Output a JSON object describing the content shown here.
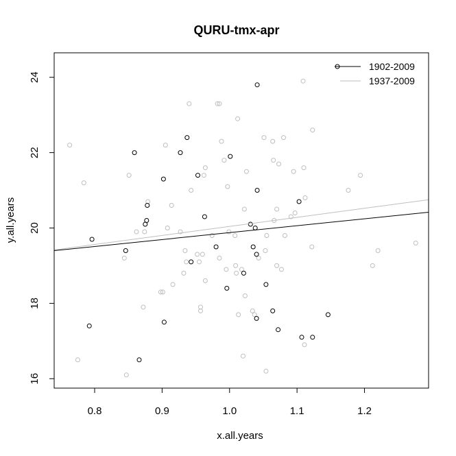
{
  "chart_data": {
    "type": "scatter",
    "title": "QURU-tmx-apr",
    "xlabel": "x.all.years",
    "ylabel": "y.all.years",
    "xlim": [
      0.74,
      1.295
    ],
    "ylim": [
      15.75,
      24.65
    ],
    "x_ticks": [
      0.8,
      0.9,
      1.0,
      1.1,
      1.2
    ],
    "y_ticks": [
      16,
      18,
      20,
      22,
      24
    ],
    "legend_position": "top-right",
    "series": [
      {
        "name": "1902-2009",
        "color": "#000000",
        "marker": "open-circle",
        "regression": {
          "intercept": 18.04,
          "slope": 1.837
        },
        "points": [
          [
            0.796,
            19.7
          ],
          [
            0.792,
            17.4
          ],
          [
            0.846,
            19.4
          ],
          [
            0.859,
            22.0
          ],
          [
            0.866,
            16.5
          ],
          [
            0.875,
            20.1
          ],
          [
            0.877,
            20.2
          ],
          [
            0.878,
            20.6
          ],
          [
            0.902,
            21.3
          ],
          [
            0.903,
            17.5
          ],
          [
            0.927,
            22.0
          ],
          [
            0.937,
            22.4
          ],
          [
            0.943,
            19.1
          ],
          [
            0.953,
            21.4
          ],
          [
            0.963,
            20.3
          ],
          [
            0.98,
            19.5
          ],
          [
            0.996,
            18.4
          ],
          [
            1.001,
            21.9
          ],
          [
            1.021,
            18.8
          ],
          [
            1.031,
            20.1
          ],
          [
            1.035,
            19.5
          ],
          [
            1.038,
            20.0
          ],
          [
            1.04,
            19.3
          ],
          [
            1.04,
            17.6
          ],
          [
            1.041,
            23.8
          ],
          [
            1.041,
            21.0
          ],
          [
            1.054,
            18.5
          ],
          [
            1.064,
            17.8
          ],
          [
            1.072,
            17.3
          ],
          [
            1.103,
            20.7
          ],
          [
            1.107,
            17.1
          ],
          [
            1.123,
            17.1
          ],
          [
            1.146,
            17.7
          ]
        ]
      },
      {
        "name": "1937-2009",
        "color": "#bebebe",
        "marker": "open-circle",
        "regression": {
          "intercept": 17.64,
          "slope": 2.403
        },
        "points": [
          [
            0.763,
            22.2
          ],
          [
            0.775,
            16.5
          ],
          [
            0.784,
            21.2
          ],
          [
            0.844,
            19.2
          ],
          [
            0.847,
            16.1
          ],
          [
            0.851,
            21.4
          ],
          [
            0.862,
            19.9
          ],
          [
            0.872,
            17.9
          ],
          [
            0.874,
            19.9
          ],
          [
            0.879,
            20.7
          ],
          [
            0.898,
            18.3
          ],
          [
            0.901,
            18.3
          ],
          [
            0.905,
            22.2
          ],
          [
            0.908,
            20.0
          ],
          [
            0.914,
            20.6
          ],
          [
            0.916,
            18.5
          ],
          [
            0.927,
            19.9
          ],
          [
            0.932,
            18.8
          ],
          [
            0.934,
            19.4
          ],
          [
            0.936,
            19.1
          ],
          [
            0.94,
            23.3
          ],
          [
            0.943,
            21.0
          ],
          [
            0.952,
            19.3
          ],
          [
            0.955,
            19.1
          ],
          [
            0.957,
            17.9
          ],
          [
            0.957,
            17.8
          ],
          [
            0.96,
            19.3
          ],
          [
            0.962,
            21.4
          ],
          [
            0.964,
            21.6
          ],
          [
            0.964,
            18.6
          ],
          [
            0.974,
            19.8
          ],
          [
            0.982,
            23.3
          ],
          [
            0.985,
            23.3
          ],
          [
            0.985,
            19.2
          ],
          [
            0.988,
            22.3
          ],
          [
            0.992,
            21.8
          ],
          [
            0.995,
            18.9
          ],
          [
            0.997,
            21.1
          ],
          [
            0.999,
            19.9
          ],
          [
            1.008,
            19.8
          ],
          [
            1.009,
            19.0
          ],
          [
            1.01,
            18.8
          ],
          [
            1.012,
            22.9
          ],
          [
            1.013,
            17.7
          ],
          [
            1.018,
            18.9
          ],
          [
            1.02,
            16.6
          ],
          [
            1.022,
            20.5
          ],
          [
            1.023,
            18.2
          ],
          [
            1.025,
            21.5
          ],
          [
            1.034,
            17.8
          ],
          [
            1.035,
            19.5
          ],
          [
            1.037,
            17.7
          ],
          [
            1.043,
            19.2
          ],
          [
            1.051,
            22.4
          ],
          [
            1.053,
            19.4
          ],
          [
            1.054,
            16.2
          ],
          [
            1.055,
            19.8
          ],
          [
            1.064,
            22.3
          ],
          [
            1.065,
            21.8
          ],
          [
            1.066,
            20.2
          ],
          [
            1.07,
            20.5
          ],
          [
            1.07,
            19.0
          ],
          [
            1.073,
            21.7
          ],
          [
            1.077,
            18.9
          ],
          [
            1.08,
            22.4
          ],
          [
            1.082,
            19.8
          ],
          [
            1.091,
            20.3
          ],
          [
            1.095,
            21.5
          ],
          [
            1.097,
            20.4
          ],
          [
            1.109,
            23.9
          ],
          [
            1.11,
            21.6
          ],
          [
            1.111,
            16.9
          ],
          [
            1.112,
            20.8
          ],
          [
            1.122,
            19.5
          ],
          [
            1.123,
            22.6
          ],
          [
            1.176,
            21.0
          ],
          [
            1.194,
            21.4
          ],
          [
            1.212,
            19.0
          ],
          [
            1.22,
            19.4
          ],
          [
            1.276,
            19.6
          ]
        ]
      }
    ]
  }
}
